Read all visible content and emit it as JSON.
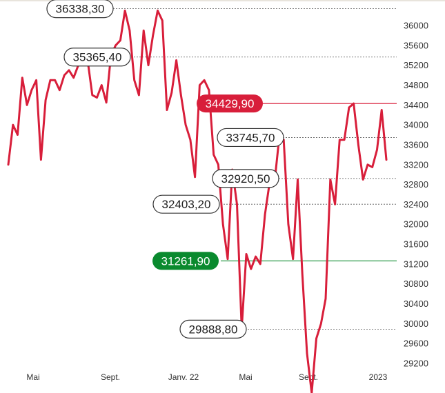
{
  "chart_data": {
    "type": "line",
    "title": "",
    "xlabel": "",
    "ylabel": "",
    "ylim": [
      29000,
      36300
    ],
    "y_ticks": [
      29200,
      29600,
      30000,
      30400,
      30800,
      31200,
      31600,
      32000,
      32400,
      32800,
      33200,
      33600,
      34000,
      34400,
      34800,
      35200,
      35600,
      36000
    ],
    "x_ticks": [
      "Mai",
      "Sept.",
      "Janv. 22",
      "Mai",
      "Sept.",
      "2023"
    ],
    "grid": false,
    "legend": "none",
    "colors": {
      "line": "#d81e3a",
      "high": "#d81e3a",
      "low": "#0a8a2e",
      "guide": "#555555"
    },
    "series": [
      {
        "values": [
          33200,
          34000,
          33800,
          34950,
          34400,
          34700,
          34900,
          33300,
          34500,
          34900,
          34900,
          34700,
          35000,
          35100,
          34950,
          35200,
          35350,
          35300,
          34600,
          34550,
          34800,
          34450,
          35400,
          35600,
          35700,
          36300,
          35900,
          34900,
          34600,
          35900,
          35200,
          35800,
          36300,
          36100,
          34300,
          34650,
          35300,
          34600,
          34000,
          33700,
          32950,
          34800,
          34900,
          34700,
          33400,
          33200,
          32000,
          31300,
          33100,
          32400,
          29900,
          31400,
          31100,
          31350,
          31200,
          32200,
          32850,
          32800,
          33700,
          33700,
          32000,
          31300,
          32900,
          31000,
          29400,
          28600,
          29700,
          30000,
          30500,
          32900,
          32400,
          33700,
          33700,
          34350,
          34429.9,
          33600,
          32900,
          33200,
          33150,
          33500,
          34300,
          33300
        ]
      }
    ],
    "annotations": [
      {
        "label": "36338,30",
        "value": 36338.3,
        "style": "outline"
      },
      {
        "label": "35365,40",
        "value": 35365.4,
        "style": "outline"
      },
      {
        "label": "34429,90",
        "value": 34429.9,
        "style": "high"
      },
      {
        "label": "33745,70",
        "value": 33745.7,
        "style": "outline"
      },
      {
        "label": "32920,50",
        "value": 32920.5,
        "style": "outline"
      },
      {
        "label": "32403,20",
        "value": 32403.2,
        "style": "outline"
      },
      {
        "label": "31261,90",
        "value": 31261.9,
        "style": "low"
      },
      {
        "label": "29888,80",
        "value": 29888.8,
        "style": "outline"
      }
    ]
  }
}
